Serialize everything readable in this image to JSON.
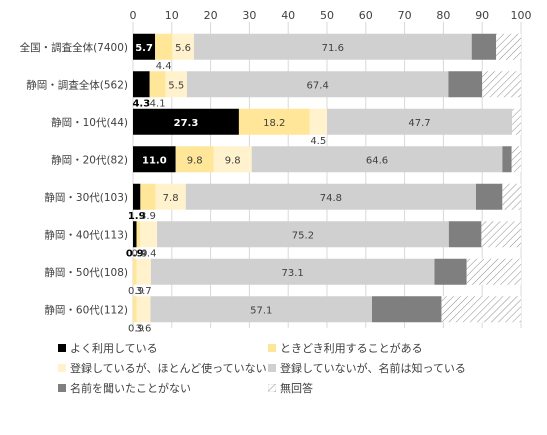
{
  "chart_data": {
    "type": "bar",
    "orientation": "horizontal",
    "stacked": true,
    "xlim": [
      0,
      100
    ],
    "xticks": [
      0,
      10,
      20,
      30,
      40,
      50,
      60,
      70,
      80,
      90,
      100
    ],
    "grid": true,
    "legend_position": "bottom",
    "categories": [
      "全国・調査全体(7400)",
      "静岡・調査全体(562)",
      "静岡・10代(44)",
      "静岡・20代(82)",
      "静岡・30代(103)",
      "静岡・40代(113)",
      "静岡・50代(108)",
      "静岡・60代(112)"
    ],
    "series": [
      {
        "name": "よく利用している",
        "color": "#000000",
        "values": [
          5.7,
          4.3,
          27.3,
          11.0,
          1.9,
          0.9,
          0.0,
          0.0
        ],
        "labels": [
          "5.7",
          "4.3",
          "27.3",
          "11.0",
          "1.9",
          "0.9",
          "",
          ""
        ]
      },
      {
        "name": "ときどき利用することがある",
        "color": "#ffe699",
        "values": [
          4.4,
          4.1,
          18.2,
          9.8,
          3.9,
          0.9,
          0.9,
          0.9
        ],
        "labels": [
          "4.4",
          "4.1",
          "18.2",
          "9.8",
          "3.9",
          "0.9",
          "0.9",
          "0.9"
        ]
      },
      {
        "name": "登録しているが、ほとんど使っていない",
        "color": "#fff2cc",
        "values": [
          5.6,
          5.5,
          4.5,
          9.8,
          7.8,
          4.4,
          3.7,
          3.6
        ],
        "labels": [
          "5.6",
          "5.5",
          "4.5",
          "9.8",
          "7.8",
          "4.4",
          "3.7",
          "3.6"
        ]
      },
      {
        "name": "登録していないが、名前は知っている",
        "color": "#d0d0d0",
        "values": [
          71.6,
          67.4,
          47.7,
          64.6,
          74.8,
          75.2,
          73.1,
          57.1
        ],
        "labels": [
          "71.6",
          "67.4",
          "47.7",
          "64.6",
          "74.8",
          "75.2",
          "73.1",
          "57.1"
        ]
      },
      {
        "name": "名前を聞いたことがない",
        "color": "#7f7f7f",
        "values": [
          6.3,
          8.7,
          0.0,
          2.4,
          6.8,
          8.4,
          8.3,
          17.9
        ],
        "labels": [
          "",
          "",
          "",
          "",
          "",
          "",
          "",
          ""
        ]
      },
      {
        "name": "無回答",
        "color": "hatch",
        "values": [
          6.4,
          10.0,
          2.3,
          2.4,
          4.8,
          10.2,
          14.0,
          20.5
        ],
        "labels": [
          "",
          "",
          "",
          "",
          "",
          "",
          "",
          ""
        ]
      }
    ]
  }
}
